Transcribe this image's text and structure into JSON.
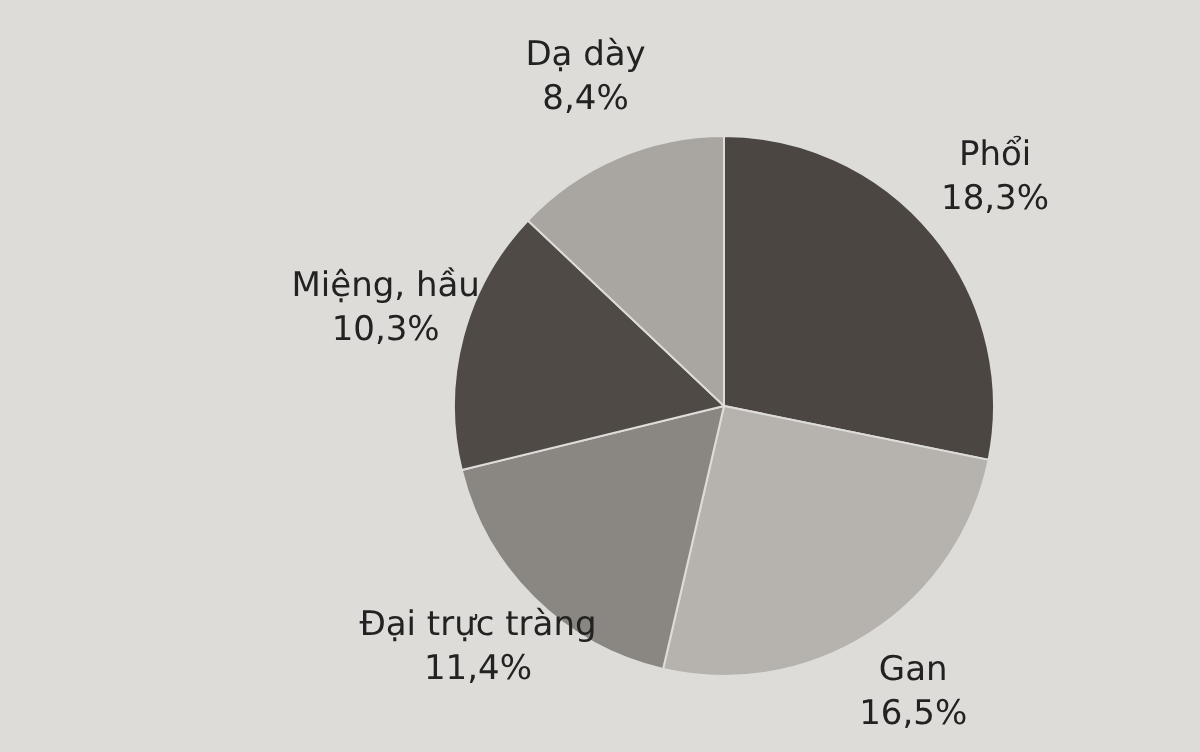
{
  "chart_data": {
    "type": "pie",
    "categories": [
      "Phổi",
      "Gan",
      "Đại trực tràng",
      "Miệng, hầu",
      "Dạ dày"
    ],
    "values": [
      18.3,
      16.5,
      11.4,
      10.3,
      8.4
    ],
    "value_labels": [
      "18,3%",
      "16,5%",
      "11,4%",
      "10,3%",
      "8,4%"
    ],
    "colors": [
      "#4b4642",
      "#b6b3ae",
      "#8a8681",
      "#4f4a45",
      "#a9a6a1"
    ]
  }
}
